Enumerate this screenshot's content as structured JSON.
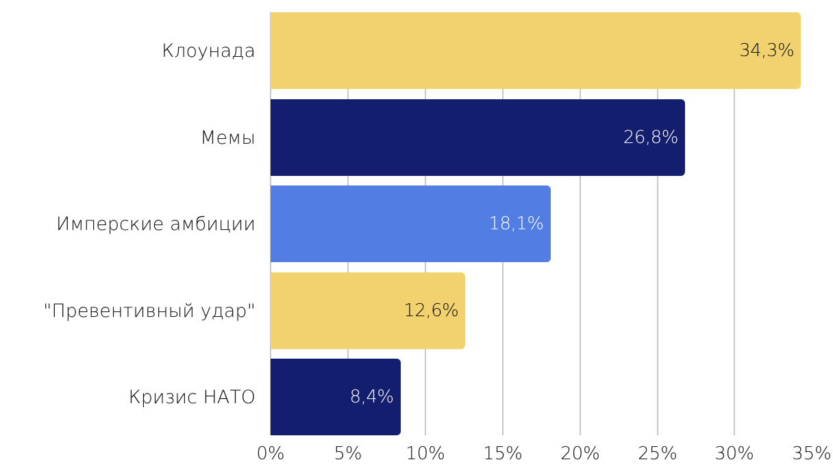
{
  "chart_data": {
    "type": "bar",
    "orientation": "horizontal",
    "title": "",
    "xlabel": "",
    "ylabel": "",
    "categories": [
      "Клоунада",
      "Мемы",
      "Имперские амбиции",
      "\"Превентивный удар\"",
      "Кризис НАТО"
    ],
    "values": [
      34.3,
      26.8,
      18.1,
      12.6,
      8.4
    ],
    "value_labels": [
      "34,3%",
      "26,8%",
      "18,1%",
      "12,6%",
      "8,4%"
    ],
    "bar_colors": [
      "#F2D26E",
      "#131F6E",
      "#527EE3",
      "#F2D26E",
      "#131F6E"
    ],
    "label_colors": [
      "#111111",
      "#ffffff",
      "#ffffff",
      "#111111",
      "#ffffff"
    ],
    "x_ticks": [
      "0%",
      "5%",
      "10%",
      "15%",
      "20%",
      "25%",
      "30%",
      "35%"
    ],
    "xlim": [
      0,
      35
    ],
    "grid": true,
    "legend": null
  }
}
